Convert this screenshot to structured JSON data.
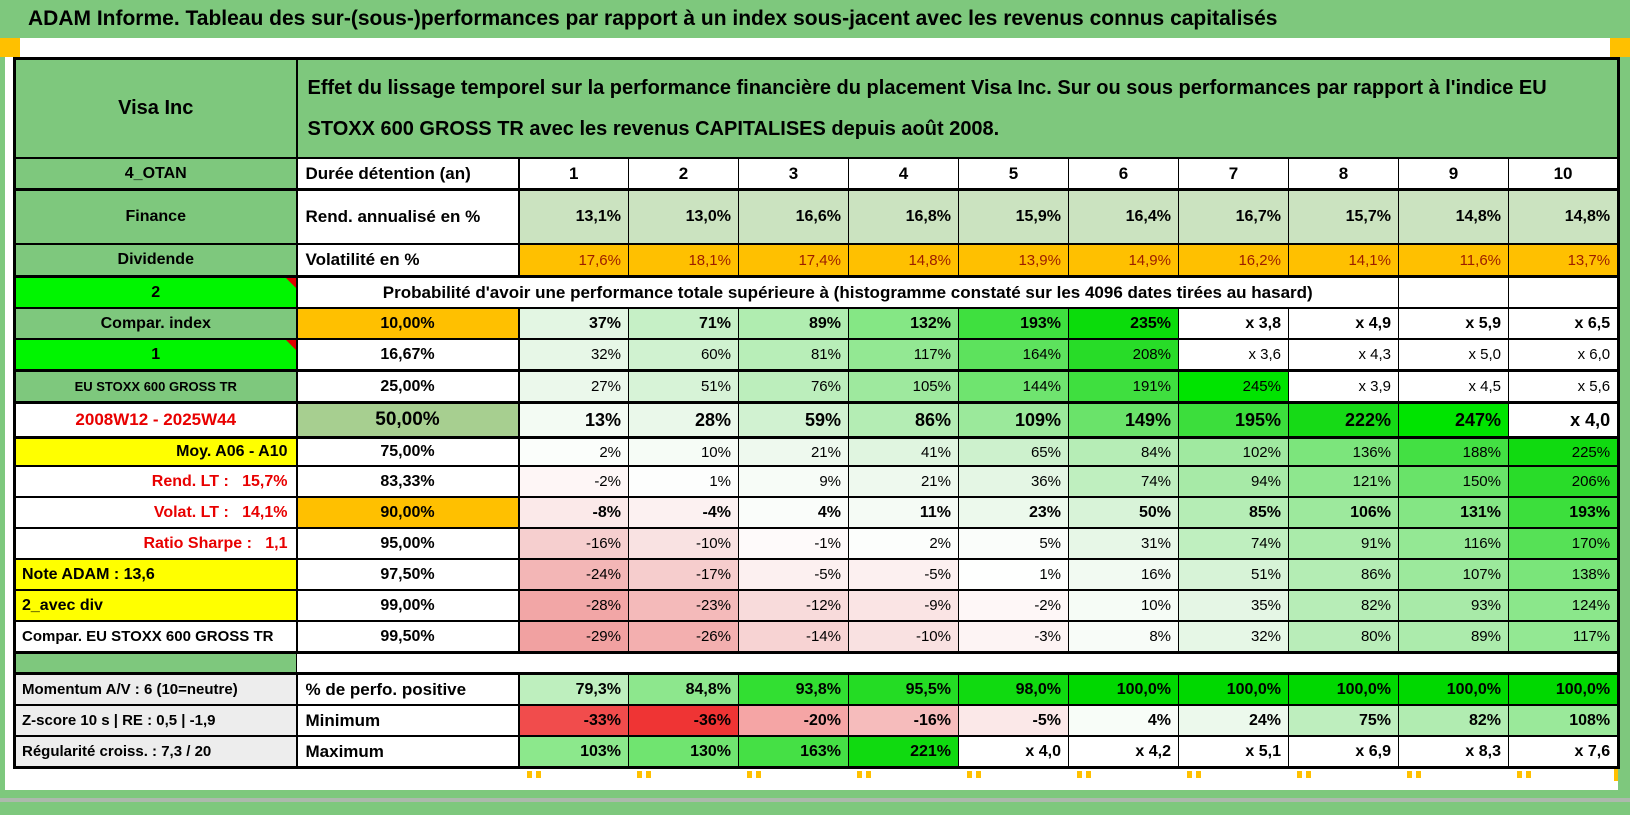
{
  "banner": "ADAM Informe. Tableau des sur-(sous-)performances par rapport à un index sous-jacent avec les revenus connus capitalisés",
  "colors": {
    "label_green": "#7EC87D",
    "bright_green": "#00F500",
    "orange": "#FFC000",
    "yellow": "#FFFF00",
    "gray_label": "#EDEDED",
    "band50": "#A7CF90",
    "neg_text": "#9C1C00",
    "red_label": "#E80000",
    "rend_band": "#CBE3C0"
  },
  "table": {
    "rows": [
      {
        "name": "header",
        "h": "r97",
        "a_t": "Visa Inc",
        "a_c": "vhead",
        "b_t": "Effet du lissage temporel sur la performance financière du placement Visa Inc. Sur ou sous performances par rapport à l'indice EU STOXX 600 GROSS TR avec les revenus CAPITALISES depuis août 2008.",
        "b_c": "desc",
        "b_span": 11
      },
      {
        "name": "duree",
        "h": "r29",
        "a_t": "4_OTAN",
        "a_c": "ga",
        "b_t": "Durée détention (an)",
        "b_c": "wl",
        "vals": [
          "1",
          "2",
          "3",
          "4",
          "5",
          "6",
          "7",
          "8",
          "9",
          "10"
        ],
        "v_c": "yr",
        "bgs": [
          "#FFFFFF",
          "#FFFFFF",
          "#FFFFFF",
          "#FFFFFF",
          "#FFFFFF",
          "#FFFFFF",
          "#FFFFFF",
          "#FFFFFF",
          "#FFFFFF",
          "#FFFFFF"
        ]
      },
      {
        "name": "rend",
        "h": "r52",
        "cls": "tt",
        "a_t": "Finance",
        "a_c": "ga",
        "b_t": "Rend. annualisé en %",
        "b_c": "wl",
        "vals": [
          "13,1%",
          "13,0%",
          "16,6%",
          "16,8%",
          "15,9%",
          "16,4%",
          "16,7%",
          "15,7%",
          "14,8%",
          "14,8%"
        ],
        "v_c": "v b",
        "bgs": [
          "#CBE3C0",
          "#CBE3C0",
          "#CBE3C0",
          "#CBE3C0",
          "#CBE3C0",
          "#CBE3C0",
          "#CBE3C0",
          "#CBE3C0",
          "#CBE3C0",
          "#CBE3C0"
        ]
      },
      {
        "name": "volat",
        "h": "r30",
        "a_t": "Dividende",
        "a_c": "ga",
        "b_t": "Volatilité en %",
        "b_c": "wl",
        "vals": [
          "17,6%",
          "18,1%",
          "17,4%",
          "14,8%",
          "13,9%",
          "14,9%",
          "16,2%",
          "14,1%",
          "11,6%",
          "13,7%"
        ],
        "v_c": "v volat",
        "bgs": [
          "#FFC000",
          "#FFC000",
          "#FFC000",
          "#FFC000",
          "#FFC000",
          "#FFC000",
          "#FFC000",
          "#FFC000",
          "#FFC000",
          "#FFC000"
        ]
      },
      {
        "name": "proba",
        "h": "r29",
        "cls": "tt",
        "a_t": "2",
        "a_c": "bright",
        "tri": true,
        "b_t": "Probabilité d'avoir une performance totale supérieure à (histogramme constaté sur les 4096 dates tirées au hasard)",
        "b_c": "probatxt",
        "b_span": 9,
        "pad": 2
      },
      {
        "name": "p10",
        "h": "r29",
        "a_t": "Compar. index",
        "a_c": "ga",
        "b_t": "10,00%",
        "b_c": "pc or",
        "vals": [
          "37%",
          "71%",
          "89%",
          "132%",
          "193%",
          "235%",
          "x 3,8",
          "x 4,9",
          "x 5,9",
          "x 6,5"
        ],
        "v_c": "v b",
        "bgs": [
          "#E3F6E3",
          "#C6F0C6",
          "#B0EDB0",
          "#85E785",
          "#3FE03F",
          "#0BDC0B",
          "#FFFFFF",
          "#FFFFFF",
          "#FFFFFF",
          "#FFFFFF"
        ]
      },
      {
        "name": "p1667",
        "h": "r29",
        "a_t": "1",
        "a_c": "bright",
        "tri": true,
        "b_t": "16,67%",
        "b_c": "pc",
        "vals": [
          "32%",
          "60%",
          "81%",
          "117%",
          "164%",
          "208%",
          "x 3,6",
          "x 4,3",
          "x 5,0",
          "x 6,0"
        ],
        "v_c": "v",
        "bgs": [
          "#E7F7E7",
          "#D0F2D0",
          "#B8EEB8",
          "#93E893",
          "#5DE25D",
          "#28DC28",
          "#FFFFFF",
          "#FFFFFF",
          "#FFFFFF",
          "#FFFFFF"
        ]
      },
      {
        "name": "p25",
        "h": "r29",
        "cls": "tt",
        "a_t": "EU STOXX 600 GROSS TR",
        "a_c": "ga sm",
        "b_t": "25,00%",
        "b_c": "pc",
        "vals": [
          "27%",
          "51%",
          "76%",
          "105%",
          "144%",
          "191%",
          "245%",
          "x 3,9",
          "x 4,5",
          "x 5,6"
        ],
        "v_c": "v",
        "bgs": [
          "#EBF8EB",
          "#D7F3D7",
          "#BCEEBC",
          "#9EE99E",
          "#6FE46F",
          "#3FDF3F",
          "#00E400",
          "#FFFFFF",
          "#FFFFFF",
          "#FFFFFF"
        ]
      },
      {
        "name": "p50",
        "h": "r32",
        "cls": "tt",
        "a_t": "2008W12 - 2025W44",
        "a_c": "adate",
        "b_t": "50,00%",
        "b_c": "pc p50",
        "vals": [
          "13%",
          "28%",
          "59%",
          "86%",
          "109%",
          "149%",
          "195%",
          "222%",
          "247%",
          "x 4,0"
        ],
        "v_c": "v big",
        "bgs": [
          "#F3FBF3",
          "#EAF8EA",
          "#D1F2D1",
          "#B4EDB4",
          "#9BE99B",
          "#6AE36A",
          "#3CDE3C",
          "#16DA16",
          "#00E400",
          "#FFFFFF"
        ]
      },
      {
        "name": "p75",
        "h": "r26",
        "cls": "tt",
        "a_t": "Moy. A06 - A10",
        "a_c": "ayr",
        "b_t": "75,00%",
        "b_c": "pc",
        "vals": [
          "2%",
          "10%",
          "21%",
          "41%",
          "65%",
          "84%",
          "102%",
          "136%",
          "188%",
          "225%"
        ],
        "v_c": "v",
        "bgs": [
          "#FBFEFB",
          "#F6FCF6",
          "#EEF9EE",
          "#E0F5E0",
          "#CDF1CD",
          "#B6EDB6",
          "#A0E9A0",
          "#7CE57C",
          "#43E043",
          "#10DA10"
        ]
      },
      {
        "name": "p8333",
        "h": "r29",
        "a_t": "Rend. LT :   15,7%",
        "a_c": "ared",
        "b_t": "83,33%",
        "b_c": "pc",
        "vals": [
          "-2%",
          "1%",
          "9%",
          "21%",
          "36%",
          "74%",
          "94%",
          "121%",
          "150%",
          "206%"
        ],
        "v_c": "v",
        "bgs": [
          "#FEF6F6",
          "#FDFEFD",
          "#F7FCF7",
          "#EEF9EE",
          "#E4F6E4",
          "#BFEFBF",
          "#A7EAA7",
          "#8EE78E",
          "#69E369",
          "#29DC29"
        ]
      },
      {
        "name": "p90",
        "h": "r29",
        "a_t": "Volat. LT :   14,1%",
        "a_c": "ared",
        "b_t": "90,00%",
        "b_c": "pc or",
        "vals": [
          "-8%",
          "-4%",
          "4%",
          "11%",
          "23%",
          "50%",
          "85%",
          "106%",
          "131%",
          "193%"
        ],
        "v_c": "v b",
        "bgs": [
          "#FBE9E9",
          "#FCF1F1",
          "#FAFDFA",
          "#F5FBF5",
          "#ECF9EC",
          "#D8F3D8",
          "#B5EDB5",
          "#9DE99D",
          "#84E684",
          "#3CDF3C"
        ]
      },
      {
        "name": "p95",
        "h": "r29",
        "a_t": "Ratio Sharpe :   1,1",
        "a_c": "ared",
        "b_t": "95,00%",
        "b_c": "pc",
        "vals": [
          "-16%",
          "-10%",
          "-1%",
          "2%",
          "5%",
          "31%",
          "74%",
          "91%",
          "116%",
          "170%"
        ],
        "v_c": "v",
        "bgs": [
          "#F6CFCF",
          "#F9E2E2",
          "#FEFAFA",
          "#FCFEFC",
          "#FAFDFA",
          "#E7F7E7",
          "#BFEFBF",
          "#AAEBAA",
          "#94E894",
          "#56E156"
        ]
      },
      {
        "name": "p975",
        "h": "r29",
        "a_t": "Note ADAM : 13,6",
        "a_c": "ayl",
        "b_t": "97,50%",
        "b_c": "pc",
        "vals": [
          "-24%",
          "-17%",
          "-5%",
          "-5%",
          "1%",
          "16%",
          "51%",
          "86%",
          "107%",
          "138%"
        ],
        "v_c": "v",
        "bgs": [
          "#F3B6B6",
          "#F6CDCD",
          "#FCF0F0",
          "#FCF0F0",
          "#FEFFFE",
          "#F2FAF2",
          "#D7F3D7",
          "#B4EDB4",
          "#9CE99C",
          "#7AE57A"
        ]
      },
      {
        "name": "p99",
        "h": "r29",
        "a_t": "2_avec div",
        "a_c": "ayl",
        "b_t": "99,00%",
        "b_c": "pc",
        "vals": [
          "-28%",
          "-23%",
          "-12%",
          "-9%",
          "-2%",
          "10%",
          "35%",
          "82%",
          "93%",
          "124%"
        ],
        "v_c": "v",
        "bgs": [
          "#F2A6A6",
          "#F4BABA",
          "#F8DBDB",
          "#FAE4E4",
          "#FEF7F7",
          "#F6FCF6",
          "#E5F6E5",
          "#B7EDB7",
          "#A8EAA8",
          "#8BE78B"
        ]
      },
      {
        "name": "p995",
        "h": "r29",
        "cls": "tb3",
        "a_t": "Compar. EU STOXX 600 GROSS TR",
        "a_c": "awl",
        "b_t": "99,50%",
        "b_c": "pc",
        "vals": [
          "-29%",
          "-26%",
          "-14%",
          "-10%",
          "-3%",
          "8%",
          "32%",
          "80%",
          "89%",
          "117%"
        ],
        "v_c": "v",
        "bgs": [
          "#F1A1A1",
          "#F3AFAF",
          "#F7D3D3",
          "#F9E1E1",
          "#FDF4F4",
          "#F8FCF8",
          "#E6F7E6",
          "#B9EDB9",
          "#ACEBAC",
          "#93E893"
        ]
      },
      {
        "name": "separator",
        "type": "sep"
      },
      {
        "name": "perfo",
        "h": "r29",
        "cls": "tt",
        "a_t": "Momentum A/V : 6 (10=neutre)",
        "a_c": "agray",
        "b_t": "% de perfo. positive",
        "b_c": "wl",
        "vals": [
          "79,3%",
          "84,8%",
          "93,8%",
          "95,5%",
          "98,0%",
          "100,0%",
          "100,0%",
          "100,0%",
          "100,0%",
          "100,0%"
        ],
        "v_c": "v b",
        "bgs": [
          "#BEEFBE",
          "#8DE78D",
          "#32DF32",
          "#24DC24",
          "#10DA10",
          "#00D800",
          "#00D800",
          "#00D800",
          "#00D800",
          "#00D800"
        ]
      },
      {
        "name": "min",
        "h": "r29",
        "a_t": "Z-score 10 s | RE : 0,5 | -1,9",
        "a_c": "agray",
        "b_t": "Minimum",
        "b_c": "wl",
        "vals": [
          "-33%",
          "-36%",
          "-20%",
          "-16%",
          "-5%",
          "4%",
          "24%",
          "75%",
          "82%",
          "108%"
        ],
        "v_c": "v b",
        "bgs": [
          "#F14C4C",
          "#EF3434",
          "#F5A5A5",
          "#F6BCBC",
          "#FBE8E8",
          "#F8FDF8",
          "#ECF9EC",
          "#BEEEBE",
          "#B1ECB1",
          "#9AE99A"
        ]
      },
      {
        "name": "max",
        "h": "r29",
        "a_t": "Régularité croiss. : 7,3 / 20",
        "a_c": "agray",
        "b_t": "Maximum",
        "b_c": "wl",
        "vals": [
          "103%",
          "130%",
          "163%",
          "221%",
          "x 4,0",
          "x 4,2",
          "x 5,1",
          "x 6,9",
          "x 8,3",
          "x 7,6"
        ],
        "v_c": "v b",
        "bgs": [
          "#8CE88C",
          "#70E470",
          "#45E045",
          "#10DA10",
          "#FFFFFF",
          "#FFFFFF",
          "#FFFFFF",
          "#FFFFFF",
          "#FFFFFF",
          "#FFFFFF"
        ]
      }
    ]
  }
}
